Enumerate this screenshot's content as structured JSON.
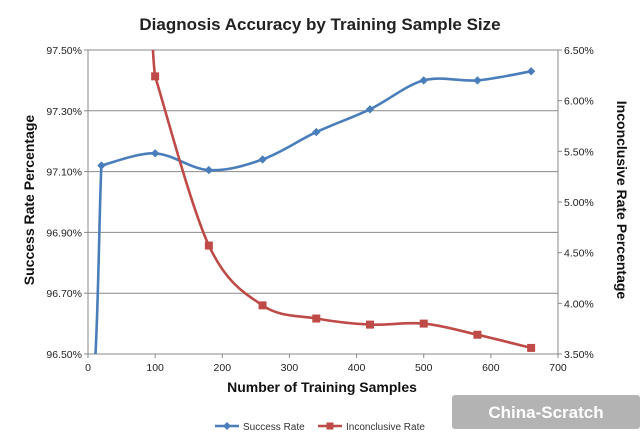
{
  "chart_data": {
    "type": "line",
    "title": "Diagnosis Accuracy by Training Sample Size",
    "xlabel": "Number of Training Samples",
    "ylabel": "Success Rate Percentage",
    "y2label": "Inconclusive Rate Percentage",
    "xlim": [
      0,
      700
    ],
    "ylim": [
      96.5,
      97.5
    ],
    "y2lim": [
      3.5,
      6.5
    ],
    "x_ticks": [
      0,
      100,
      200,
      300,
      400,
      500,
      600,
      700
    ],
    "y_ticks": [
      "96.50%",
      "96.70%",
      "96.90%",
      "97.10%",
      "97.30%",
      "97.50%"
    ],
    "y_tick_values": [
      96.5,
      96.7,
      96.9,
      97.1,
      97.3,
      97.5
    ],
    "y2_ticks": [
      "3.50%",
      "4.00%",
      "4.50%",
      "5.00%",
      "5.50%",
      "6.00%",
      "6.50%"
    ],
    "y2_tick_values": [
      3.5,
      4.0,
      4.5,
      5.0,
      5.5,
      6.0,
      6.5
    ],
    "grid": true,
    "legend_position": "bottom",
    "series": [
      {
        "name": "Success Rate",
        "axis": "left",
        "color": "#4a7ebb",
        "marker": "diamond",
        "x": [
          20,
          100,
          180,
          260,
          340,
          420,
          500,
          580,
          660
        ],
        "y": [
          97.12,
          97.16,
          97.105,
          97.14,
          97.23,
          97.305,
          97.4,
          97.4,
          97.43
        ]
      },
      {
        "name": "Inconclusive Rate",
        "axis": "right",
        "color": "#be4b48",
        "marker": "square",
        "x": [
          100,
          180,
          260,
          340,
          420,
          500,
          580,
          660
        ],
        "y": [
          6.24,
          4.57,
          3.98,
          3.85,
          3.79,
          3.8,
          3.69,
          3.56
        ]
      }
    ]
  },
  "watermark": "China-Scratch"
}
